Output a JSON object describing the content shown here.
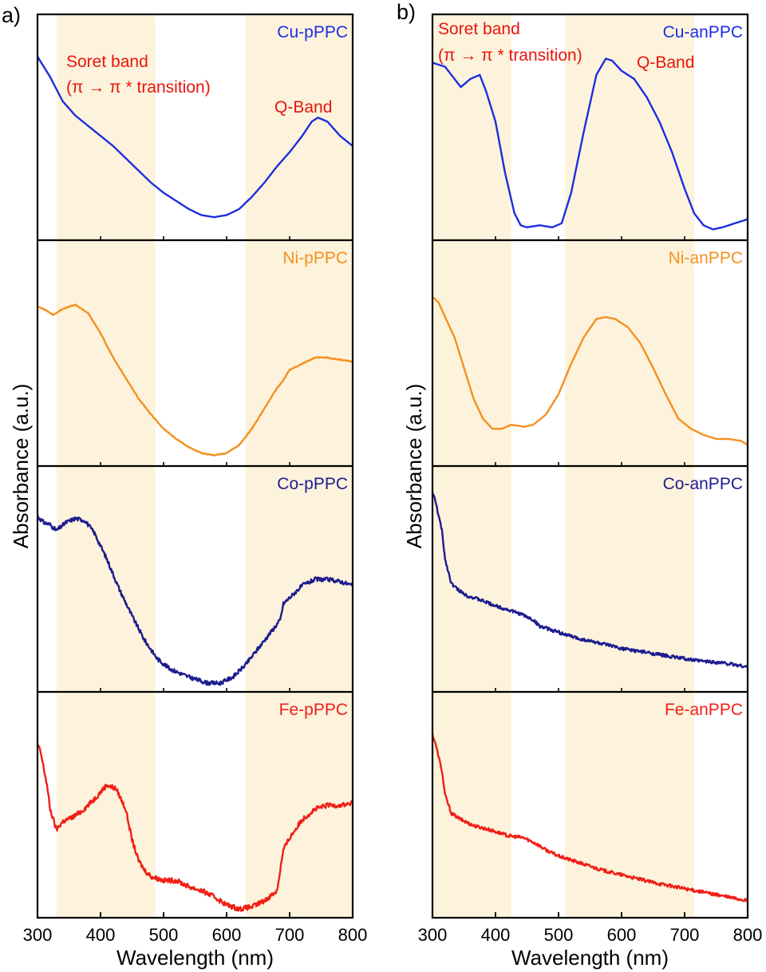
{
  "chart_data": [
    {
      "type": "line",
      "panel_label": "a)",
      "xlabel": "Wavelength (nm)",
      "ylabel": "Absorbance (a.u.)",
      "xlim": [
        300,
        800
      ],
      "xticks": [
        300,
        400,
        500,
        600,
        700,
        800
      ],
      "grid": false,
      "shaded_regions": [
        [
          330,
          487
        ],
        [
          630,
          800
        ]
      ],
      "region_color": "#fdf3dc",
      "annotations": {
        "soret_line1": "Soret band",
        "soret_line2": "(π → π * transition)",
        "qband": "Q-Band",
        "color": "#e8150c"
      },
      "subplots": [
        {
          "name": "Cu-pPPC",
          "color": "#1d2ee0",
          "noise": 0,
          "x": [
            300,
            320,
            340,
            360,
            380,
            400,
            420,
            440,
            460,
            480,
            500,
            520,
            540,
            560,
            580,
            600,
            620,
            640,
            660,
            680,
            700,
            720,
            735,
            745,
            760,
            780,
            800
          ],
          "y": [
            0.87,
            0.77,
            0.65,
            0.58,
            0.53,
            0.48,
            0.43,
            0.37,
            0.31,
            0.25,
            0.2,
            0.16,
            0.12,
            0.09,
            0.08,
            0.09,
            0.12,
            0.18,
            0.25,
            0.33,
            0.4,
            0.48,
            0.55,
            0.57,
            0.55,
            0.48,
            0.43
          ]
        },
        {
          "name": "Ni-pPPC",
          "color": "#f4901f",
          "noise": 0.002,
          "x": [
            300,
            310,
            325,
            340,
            360,
            380,
            400,
            420,
            440,
            460,
            480,
            500,
            520,
            540,
            560,
            580,
            600,
            620,
            640,
            660,
            680,
            690,
            700,
            720,
            740,
            760,
            780,
            800
          ],
          "y": [
            0.75,
            0.74,
            0.71,
            0.74,
            0.76,
            0.72,
            0.62,
            0.5,
            0.4,
            0.3,
            0.22,
            0.15,
            0.1,
            0.06,
            0.03,
            0.02,
            0.03,
            0.07,
            0.15,
            0.25,
            0.35,
            0.39,
            0.44,
            0.47,
            0.5,
            0.5,
            0.49,
            0.48
          ]
        },
        {
          "name": "Co-pPPC",
          "color": "#1d1c8e",
          "noise": 0.01,
          "x": [
            300,
            310,
            320,
            330,
            345,
            360,
            375,
            390,
            410,
            430,
            450,
            470,
            490,
            510,
            540,
            570,
            590,
            610,
            630,
            650,
            670,
            685,
            690,
            700,
            720,
            740,
            760,
            780,
            800
          ],
          "y": [
            0.83,
            0.8,
            0.79,
            0.76,
            0.8,
            0.82,
            0.81,
            0.75,
            0.62,
            0.47,
            0.34,
            0.22,
            0.13,
            0.08,
            0.04,
            0.01,
            0.01,
            0.04,
            0.1,
            0.18,
            0.26,
            0.32,
            0.4,
            0.43,
            0.49,
            0.52,
            0.52,
            0.51,
            0.49
          ]
        },
        {
          "name": "Fe-pPPC",
          "color": "#f01f16",
          "noise": 0.012,
          "x": [
            300,
            305,
            315,
            320,
            330,
            340,
            355,
            370,
            390,
            410,
            425,
            440,
            450,
            460,
            470,
            480,
            500,
            520,
            540,
            560,
            580,
            600,
            620,
            640,
            660,
            680,
            685,
            690,
            700,
            720,
            740,
            760,
            780,
            800
          ],
          "y": [
            0.82,
            0.78,
            0.62,
            0.5,
            0.4,
            0.44,
            0.46,
            0.49,
            0.55,
            0.62,
            0.6,
            0.5,
            0.35,
            0.25,
            0.2,
            0.17,
            0.15,
            0.15,
            0.12,
            0.1,
            0.07,
            0.03,
            0.01,
            0.02,
            0.05,
            0.1,
            0.2,
            0.3,
            0.36,
            0.45,
            0.5,
            0.52,
            0.52,
            0.53
          ]
        }
      ]
    },
    {
      "type": "line",
      "panel_label": "b)",
      "xlabel": "Wavelength (nm)",
      "ylabel": "Absorbance (a.u.)",
      "xlim": [
        300,
        800
      ],
      "xticks": [
        300,
        400,
        500,
        600,
        700,
        800
      ],
      "grid": false,
      "shaded_regions": [
        [
          300,
          425
        ],
        [
          510,
          715
        ]
      ],
      "region_color": "#fdf3dc",
      "annotations": {
        "soret_line1": "Soret band",
        "soret_line2": "(π → π * transition)",
        "qband": "Q-Band",
        "color": "#e8150c"
      },
      "subplots": [
        {
          "name": "Cu-anPPC",
          "color": "#1d2ee0",
          "noise": 0,
          "x": [
            300,
            320,
            345,
            360,
            375,
            385,
            400,
            415,
            430,
            440,
            450,
            470,
            490,
            505,
            520,
            540,
            560,
            575,
            585,
            600,
            620,
            640,
            660,
            680,
            700,
            715,
            730,
            745,
            760,
            780,
            800
          ],
          "y": [
            0.84,
            0.82,
            0.72,
            0.76,
            0.78,
            0.7,
            0.55,
            0.3,
            0.1,
            0.04,
            0.03,
            0.04,
            0.03,
            0.05,
            0.2,
            0.5,
            0.78,
            0.86,
            0.85,
            0.8,
            0.76,
            0.67,
            0.55,
            0.4,
            0.22,
            0.1,
            0.04,
            0.02,
            0.03,
            0.05,
            0.07
          ]
        },
        {
          "name": "Ni-anPPC",
          "color": "#f4901f",
          "noise": 0,
          "x": [
            300,
            310,
            320,
            335,
            350,
            365,
            380,
            395,
            410,
            425,
            445,
            460,
            480,
            500,
            520,
            540,
            560,
            575,
            590,
            610,
            630,
            650,
            670,
            690,
            710,
            730,
            750,
            770,
            790,
            800
          ],
          "y": [
            0.8,
            0.77,
            0.7,
            0.6,
            0.45,
            0.3,
            0.2,
            0.15,
            0.15,
            0.17,
            0.16,
            0.17,
            0.22,
            0.32,
            0.47,
            0.6,
            0.69,
            0.7,
            0.69,
            0.65,
            0.57,
            0.45,
            0.32,
            0.2,
            0.15,
            0.12,
            0.1,
            0.1,
            0.09,
            0.07
          ]
        },
        {
          "name": "Co-anPPC",
          "color": "#1d1c8e",
          "noise": 0.008,
          "x": [
            300,
            305,
            315,
            320,
            330,
            340,
            355,
            375,
            400,
            420,
            440,
            460,
            470,
            480,
            500,
            530,
            560,
            600,
            640,
            680,
            720,
            760,
            800
          ],
          "y": [
            0.95,
            0.9,
            0.76,
            0.62,
            0.5,
            0.47,
            0.44,
            0.42,
            0.39,
            0.37,
            0.35,
            0.32,
            0.29,
            0.28,
            0.26,
            0.23,
            0.21,
            0.18,
            0.16,
            0.14,
            0.12,
            0.11,
            0.09
          ]
        },
        {
          "name": "Fe-anPPC",
          "color": "#f01f16",
          "noise": 0.008,
          "x": [
            300,
            305,
            315,
            320,
            330,
            345,
            365,
            390,
            420,
            445,
            465,
            480,
            500,
            530,
            570,
            610,
            650,
            700,
            750,
            800
          ],
          "y": [
            0.87,
            0.82,
            0.69,
            0.57,
            0.48,
            0.45,
            0.42,
            0.4,
            0.37,
            0.36,
            0.33,
            0.3,
            0.27,
            0.24,
            0.2,
            0.17,
            0.14,
            0.11,
            0.08,
            0.05
          ]
        }
      ]
    }
  ]
}
